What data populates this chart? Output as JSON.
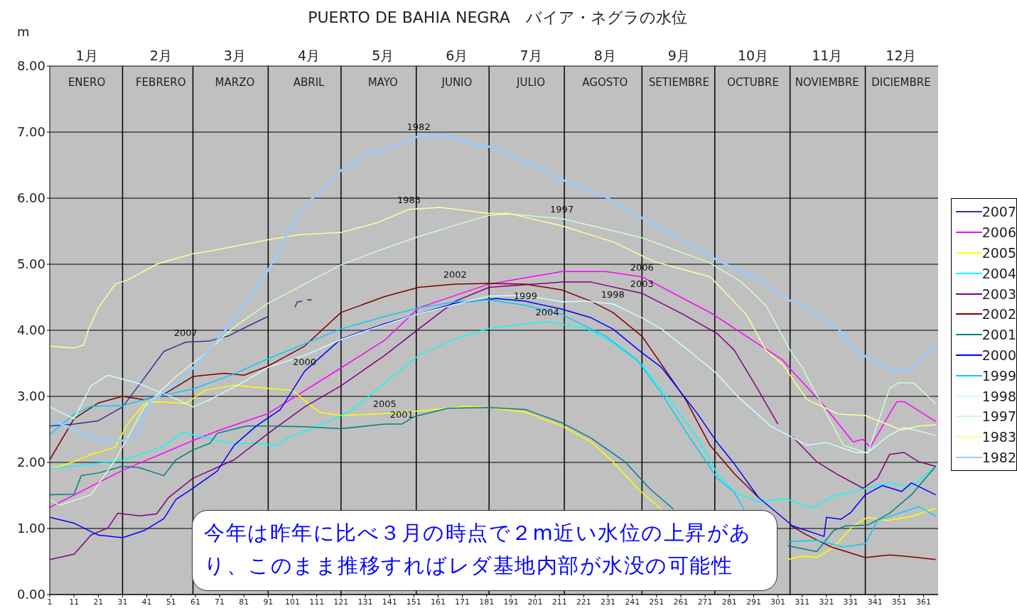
{
  "chart_data": {
    "type": "line",
    "title": "PUERTO DE BAHIA NEGRA　バイア・ネグラの水位",
    "ylabel": "m",
    "xlim": [
      1,
      367
    ],
    "xticks": [
      1,
      11,
      21,
      31,
      41,
      51,
      61,
      71,
      81,
      91,
      101,
      111,
      121,
      131,
      141,
      151,
      161,
      171,
      181,
      191,
      201,
      211,
      221,
      231,
      241,
      251,
      261,
      271,
      281,
      291,
      301,
      311,
      321,
      331,
      341,
      351,
      361
    ],
    "x2lim": [
      0.5,
      12.5
    ],
    "x2ticks": [
      {
        "value": 1,
        "label": "1月"
      },
      {
        "value": 2,
        "label": "2月"
      },
      {
        "value": 3,
        "label": "3月"
      },
      {
        "value": 4,
        "label": "4月"
      },
      {
        "value": 5,
        "label": "5月"
      },
      {
        "value": 6,
        "label": "6月"
      },
      {
        "value": 7,
        "label": "7月"
      },
      {
        "value": 8,
        "label": "8月"
      },
      {
        "value": 9,
        "label": "9月"
      },
      {
        "value": 10,
        "label": "10月"
      },
      {
        "value": 11,
        "label": "11月"
      },
      {
        "value": 12,
        "label": "12月"
      }
    ],
    "ref_lines": [
      {
        "axis": "x",
        "value": 31,
        "label": null,
        "color": "#000000"
      },
      {
        "axis": "x",
        "value": 60,
        "label": null,
        "color": "#000000"
      },
      {
        "axis": "x",
        "value": 91,
        "label": null,
        "color": "#000000"
      },
      {
        "axis": "x",
        "value": 121,
        "label": null,
        "color": "#000000"
      },
      {
        "axis": "x",
        "value": 152,
        "label": null,
        "color": "#000000"
      },
      {
        "axis": "x",
        "value": 182,
        "label": null,
        "color": "#000000"
      },
      {
        "axis": "x",
        "value": 213,
        "label": null,
        "color": "#000000"
      },
      {
        "axis": "x",
        "value": 245,
        "label": null,
        "color": "#000000"
      },
      {
        "axis": "x",
        "value": 275,
        "label": null,
        "color": "#000000"
      },
      {
        "axis": "x",
        "value": 306,
        "label": null,
        "color": "#000000"
      },
      {
        "axis": "x",
        "value": 337,
        "label": null,
        "color": "#000000"
      }
    ],
    "ylim": [
      0,
      8
    ],
    "yticks": [
      {
        "value": 0,
        "label": "0.00"
      },
      {
        "value": 1,
        "label": "1.00"
      },
      {
        "value": 2,
        "label": "2.00"
      },
      {
        "value": 3,
        "label": "3.00"
      },
      {
        "value": 4,
        "label": "4.00"
      },
      {
        "value": 5,
        "label": "5.00"
      },
      {
        "value": 6,
        "label": "6.00"
      },
      {
        "value": 7,
        "label": "7.00"
      },
      {
        "value": 8,
        "label": "8.00"
      }
    ],
    "grid": "y",
    "legend": "right",
    "annotations": [
      {
        "text": "1982",
        "x": 153,
        "y": 6.94
      },
      {
        "text": "1983",
        "x": 149,
        "y": 5.83
      },
      {
        "text": "1997",
        "x": 212,
        "y": 5.69
      },
      {
        "text": "2002",
        "x": 168,
        "y": 4.7
      },
      {
        "text": "2006",
        "x": 245,
        "y": 4.81
      },
      {
        "text": "2003",
        "x": 245,
        "y": 4.56
      },
      {
        "text": "1998",
        "x": 233,
        "y": 4.4
      },
      {
        "text": "1999",
        "x": 197,
        "y": 4.38
      },
      {
        "text": "2004",
        "x": 206,
        "y": 4.13
      },
      {
        "text": "2005",
        "x": 139,
        "y": 2.74
      },
      {
        "text": "2001",
        "x": 146,
        "y": 2.58
      },
      {
        "text": "2000",
        "x": 106,
        "y": 3.38
      },
      {
        "text": "2007",
        "x": 57,
        "y": 3.82
      },
      "ENERO",
      "FEBRERO",
      "MARZO",
      "ABRIL",
      "MAYO",
      "JUNIO",
      "JULIO",
      "AGOSTO",
      "SETIEMBRE",
      "OCTUBRE",
      "NOVIEMBRE",
      "DICIEMBRE",
      "今年は昨年に比べ３月の時点で２m近い水位の上昇があり、このまま推移すればレダ基地内部が水没の可能性"
    ],
    "series": [
      {
        "name": "2007",
        "color": "#333399",
        "x": [
          1,
          11,
          21,
          31,
          39,
          48,
          57,
          67,
          75,
          83,
          91,
          92,
          102,
          103,
          105,
          106,
          107,
          109
        ],
        "values": [
          2.55,
          2.58,
          2.63,
          2.84,
          3.23,
          3.68,
          3.82,
          3.84,
          3.92,
          4.07,
          4.21,
          null,
          4.35,
          4.43,
          4.44,
          null,
          4.46,
          4.46
        ]
      },
      {
        "name": "2006",
        "color": "#ff00ff",
        "x": [
          1,
          31,
          60,
          71,
          91,
          121,
          139,
          153,
          182,
          212,
          230,
          245,
          274,
          288,
          303,
          307,
          319,
          332,
          336,
          339,
          350,
          353,
          366
        ],
        "values": [
          1.32,
          1.88,
          2.33,
          2.49,
          2.74,
          3.43,
          3.85,
          4.34,
          4.7,
          4.89,
          4.89,
          4.81,
          4.25,
          3.91,
          3.55,
          3.38,
          2.9,
          2.31,
          2.35,
          2.23,
          2.92,
          2.92,
          2.62
        ]
      },
      {
        "name": "2005",
        "color": "#ffff00",
        "x": [
          1,
          11,
          18,
          28,
          33,
          40,
          45,
          57,
          65,
          77,
          91,
          101,
          112,
          121,
          139,
          153,
          173,
          182,
          197,
          212,
          224,
          233,
          243,
          253,
          254,
          304,
          305,
          311,
          317,
          324,
          332,
          338,
          346,
          356,
          366
        ],
        "values": [
          1.9,
          2.01,
          2.12,
          2.23,
          2.58,
          2.89,
          2.92,
          2.89,
          3.09,
          3.17,
          3.12,
          3.09,
          2.76,
          2.71,
          2.74,
          2.78,
          2.85,
          2.83,
          2.76,
          2.55,
          2.31,
          2.01,
          1.61,
          1.29,
          null,
          null,
          0.53,
          0.58,
          0.56,
          0.72,
          1.04,
          1.17,
          1.12,
          1.18,
          1.31
        ]
      },
      {
        "name": "2004",
        "color": "#00ffff",
        "x": [
          1,
          31,
          47,
          56,
          62,
          77,
          86,
          94,
          99,
          116,
          125,
          139,
          153,
          168,
          182,
          206,
          222,
          233,
          245,
          258,
          268,
          276,
          283,
          293,
          303,
          307,
          315,
          324,
          334,
          347,
          356,
          366
        ],
        "values": [
          1.9,
          2.03,
          2.23,
          2.46,
          2.4,
          2.28,
          2.29,
          2.25,
          2.37,
          2.62,
          2.78,
          3.2,
          3.62,
          3.87,
          4.03,
          4.13,
          4.03,
          3.81,
          3.48,
          2.87,
          2.37,
          1.83,
          1.55,
          1.4,
          1.45,
          1.42,
          1.31,
          1.49,
          1.58,
          1.69,
          1.63,
          1.94
        ]
      },
      {
        "name": "2003",
        "color": "#800080",
        "x": [
          1,
          11,
          18,
          25,
          29,
          38,
          45,
          50,
          60,
          77,
          91,
          106,
          121,
          139,
          153,
          168,
          182,
          212,
          224,
          245,
          262,
          276,
          283,
          293,
          301,
          302,
          307,
          317,
          325,
          336,
          342,
          347,
          353,
          359,
          366
        ],
        "values": [
          0.53,
          0.61,
          0.9,
          1.01,
          1.23,
          1.19,
          1.22,
          1.47,
          1.76,
          2.04,
          2.44,
          2.84,
          3.16,
          3.62,
          4.02,
          4.44,
          4.65,
          4.73,
          4.73,
          4.56,
          4.24,
          3.95,
          3.7,
          3.09,
          2.58,
          null,
          2.39,
          2.01,
          1.83,
          1.61,
          1.76,
          2.12,
          2.15,
          2.01,
          1.94
        ]
      },
      {
        "name": "2002",
        "color": "#800000",
        "x": [
          1,
          11,
          21,
          31,
          40,
          48,
          60,
          73,
          81,
          91,
          106,
          121,
          139,
          153,
          168,
          182,
          197,
          212,
          224,
          233,
          245,
          255,
          263,
          273,
          283,
          293,
          303,
          306,
          313,
          323,
          337,
          347,
          356,
          366
        ],
        "values": [
          2.04,
          2.66,
          2.9,
          3.0,
          2.95,
          3.03,
          3.3,
          3.35,
          3.32,
          3.46,
          3.76,
          4.27,
          4.51,
          4.65,
          4.7,
          4.71,
          4.7,
          4.61,
          4.44,
          4.27,
          3.91,
          3.38,
          2.95,
          2.26,
          1.83,
          1.47,
          null,
          1.05,
          0.9,
          0.72,
          0.56,
          0.6,
          0.57,
          0.53
        ]
      },
      {
        "name": "2001",
        "color": "#008080",
        "x": [
          1,
          11,
          14,
          21,
          31,
          38,
          48,
          53,
          60,
          67,
          70,
          82,
          91,
          106,
          121,
          139,
          146,
          151,
          165,
          182,
          197,
          212,
          224,
          238,
          248,
          258,
          259,
          304,
          305,
          317,
          324,
          329,
          338,
          347,
          356,
          366
        ],
        "values": [
          1.51,
          1.52,
          1.8,
          1.84,
          1.94,
          1.92,
          1.8,
          2.04,
          2.19,
          2.29,
          2.44,
          2.55,
          2.55,
          2.54,
          2.51,
          2.58,
          2.58,
          2.69,
          2.82,
          2.83,
          2.8,
          2.6,
          2.37,
          2.01,
          1.61,
          1.29,
          null,
          null,
          0.74,
          0.65,
          0.97,
          1.04,
          1.05,
          1.23,
          1.51,
          1.94
        ]
      },
      {
        "name": "2000",
        "color": "#0000ff",
        "x": [
          1,
          11,
          21,
          31,
          40,
          48,
          53,
          60,
          70,
          77,
          86,
          96,
          106,
          121,
          139,
          153,
          168,
          185,
          197,
          212,
          224,
          233,
          245,
          253,
          268,
          276,
          283,
          293,
          307,
          320,
          321,
          327,
          331,
          337,
          344,
          352,
          356,
          366
        ],
        "values": [
          1.17,
          1.08,
          0.9,
          0.86,
          0.97,
          1.15,
          1.44,
          1.61,
          1.87,
          2.26,
          2.55,
          2.8,
          3.38,
          3.87,
          4.1,
          4.25,
          4.41,
          4.48,
          4.44,
          4.32,
          4.19,
          4.02,
          3.66,
          3.44,
          2.73,
          2.3,
          1.98,
          1.47,
          1.04,
          0.88,
          1.17,
          1.14,
          1.24,
          1.51,
          1.65,
          1.56,
          1.69,
          1.51
        ]
      },
      {
        "name": "1999",
        "color": "#00ccff",
        "x": [
          1,
          11,
          18,
          31,
          43,
          60,
          77,
          91,
          121,
          139,
          153,
          168,
          182,
          197,
          212,
          230,
          243,
          253,
          263,
          276,
          283,
          287,
          288,
          304,
          305,
          317,
          328,
          337,
          342,
          359,
          366
        ],
        "values": [
          2.42,
          2.73,
          2.85,
          2.86,
          2.98,
          3.11,
          3.34,
          3.57,
          4.02,
          4.21,
          4.34,
          4.43,
          4.46,
          4.38,
          4.24,
          3.91,
          3.55,
          3.05,
          2.47,
          1.76,
          1.55,
          1.29,
          null,
          null,
          0.8,
          0.82,
          0.72,
          0.77,
          1.12,
          1.33,
          1.19
        ]
      },
      {
        "name": "1998",
        "color": "#ccffff",
        "x": [
          1,
          11,
          18,
          25,
          38,
          52,
          60,
          67,
          80,
          91,
          106,
          121,
          136,
          153,
          182,
          197,
          212,
          222,
          233,
          245,
          253,
          263,
          276,
          283,
          298,
          313,
          321,
          333,
          338,
          346,
          353,
          366
        ],
        "values": [
          2.84,
          2.66,
          3.16,
          3.32,
          3.19,
          2.98,
          2.84,
          2.95,
          3.2,
          3.44,
          3.62,
          3.86,
          4.05,
          4.25,
          4.52,
          4.53,
          4.43,
          4.44,
          4.4,
          4.19,
          4.02,
          3.73,
          3.34,
          3.05,
          2.55,
          2.26,
          2.3,
          2.15,
          2.15,
          2.39,
          2.53,
          2.41
        ]
      },
      {
        "name": "1997",
        "color": "#ccffcc",
        "x": [
          1,
          5,
          18,
          28,
          40,
          53,
          63,
          77,
          91,
          121,
          136,
          153,
          168,
          182,
          190,
          212,
          245,
          273,
          286,
          296,
          306,
          311,
          318,
          328,
          338,
          342,
          347,
          351,
          357,
          366
        ],
        "values": [
          1.44,
          1.35,
          1.51,
          2.04,
          2.84,
          3.3,
          3.59,
          4.05,
          4.41,
          4.99,
          5.2,
          5.42,
          5.59,
          5.74,
          5.76,
          5.69,
          5.4,
          5.02,
          4.73,
          4.38,
          3.7,
          3.44,
          2.95,
          2.26,
          2.14,
          2.58,
          3.12,
          3.21,
          3.2,
          2.89
        ]
      },
      {
        "name": "1983",
        "color": "#ffff99",
        "x": [
          1,
          11,
          15,
          17,
          21,
          28,
          33,
          45,
          60,
          67,
          91,
          104,
          121,
          136,
          149,
          162,
          182,
          190,
          212,
          233,
          250,
          273,
          276,
          288,
          296,
          303,
          313,
          326,
          337,
          352,
          359,
          366
        ],
        "values": [
          3.76,
          3.73,
          3.78,
          4.02,
          4.34,
          4.7,
          4.76,
          5.0,
          5.16,
          5.2,
          5.37,
          5.45,
          5.48,
          5.63,
          5.83,
          5.86,
          5.77,
          5.77,
          5.58,
          5.34,
          5.04,
          4.81,
          4.7,
          4.24,
          3.7,
          3.48,
          2.95,
          2.73,
          2.71,
          2.49,
          2.55,
          2.57
        ]
      },
      {
        "name": "1982",
        "color": "#99ccff",
        "x": [
          1,
          11,
          21,
          31,
          37,
          42,
          57,
          73,
          91,
          104,
          121,
          131,
          139,
          144,
          153,
          165,
          175,
          182,
          197,
          212,
          230,
          245,
          276,
          293,
          306,
          315,
          326,
          332,
          342,
          347,
          355,
          362,
          366
        ],
        "values": [
          2.65,
          2.5,
          2.35,
          2.33,
          2.4,
          2.9,
          3.3,
          3.98,
          4.91,
          5.81,
          6.42,
          6.67,
          6.74,
          6.81,
          6.94,
          6.94,
          6.82,
          6.78,
          6.56,
          6.28,
          6.02,
          5.7,
          5.06,
          4.77,
          4.45,
          4.3,
          4.02,
          3.73,
          3.48,
          3.41,
          3.39,
          3.66,
          3.76
        ]
      }
    ]
  }
}
